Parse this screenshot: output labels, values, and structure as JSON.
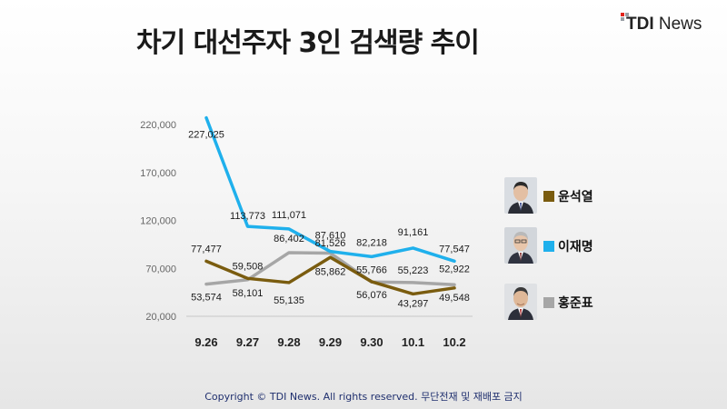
{
  "title": "차기 대선주자 3인 검색량 추이",
  "brand": {
    "part1": "TDI",
    "part2": "News"
  },
  "footer": "Copyright © TDI News. All rights reserved. 무단전재 및 재배포 금지",
  "chart_data": {
    "type": "line",
    "title": "차기 대선주자 3인 검색량 추이",
    "xlabel": "",
    "ylabel": "",
    "categories": [
      "9.26",
      "9.27",
      "9.28",
      "9.29",
      "9.30",
      "10.1",
      "10.2"
    ],
    "ylim": [
      20000,
      220000
    ],
    "y_ticks": [
      20000,
      70000,
      120000,
      170000,
      220000
    ],
    "y_tick_labels": [
      "20,000",
      "70,000",
      "120,000",
      "170,000",
      "220,000"
    ],
    "grid": false,
    "legend_position": "right",
    "series": [
      {
        "name": "윤석열",
        "color": "#7a5c0f",
        "values": [
          77477,
          59508,
          55135,
          81526,
          56076,
          43297,
          49548
        ],
        "labels": [
          "77,477",
          "59,508",
          "55,135",
          "81,526",
          "56,076",
          "43,297",
          "49,548"
        ]
      },
      {
        "name": "이재명",
        "color": "#1fb0ec",
        "values": [
          227025,
          113773,
          111071,
          87610,
          82218,
          91161,
          77547
        ],
        "labels": [
          "227,025",
          "113,773",
          "111,071",
          "87,610",
          "82,218",
          "91,161",
          "77,547"
        ]
      },
      {
        "name": "홍준표",
        "color": "#a6a6a6",
        "values": [
          53574,
          58101,
          86402,
          85862,
          55766,
          55223,
          52922
        ],
        "labels": [
          "53,574",
          "58,101",
          "86,402",
          "85,862",
          "55,766",
          "55,223",
          "52,922"
        ]
      }
    ]
  }
}
